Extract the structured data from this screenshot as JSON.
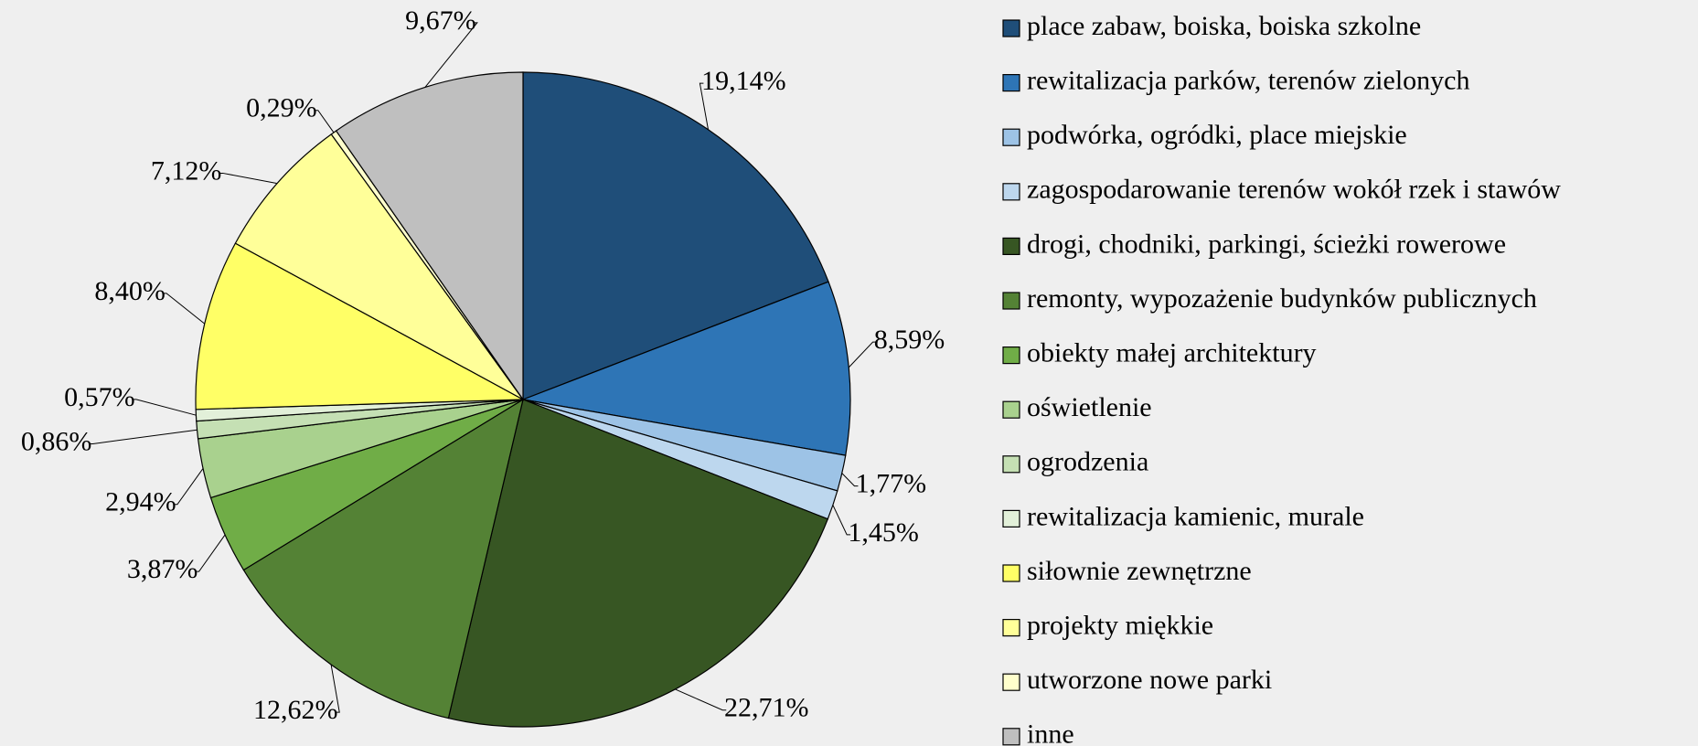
{
  "chart_data": {
    "type": "pie",
    "categories": [
      "place zabaw, boiska, boiska szkolne",
      "rewitalizacja parków, terenów zielonych",
      "podwórka, ogródki, place miejskie",
      "zagospodarowanie terenów wokół rzek i stawów",
      "drogi, chodniki, parkingi, ścieżki rowerowe",
      "remonty, wypozażenie budynków publicznych",
      "obiekty małej architektury",
      "oświetlenie",
      "ogrodzenia",
      "rewitalizacja kamienic, murale",
      "siłownie zewnętrzne",
      "projekty miękkie",
      "utworzone nowe parki",
      "inne"
    ],
    "values": [
      19.14,
      8.59,
      1.77,
      1.45,
      22.71,
      12.62,
      3.87,
      2.94,
      0.86,
      0.57,
      8.4,
      7.12,
      0.29,
      9.67
    ],
    "value_labels": [
      "19,14%",
      "8,59%",
      "1,77%",
      "1,45%",
      "22,71%",
      "12,62%",
      "3,87%",
      "2,94%",
      "0,86%",
      "0,57%",
      "8,40%",
      "7,12%",
      "0,29%",
      "9,67%"
    ],
    "colors": [
      "#1f4e79",
      "#2e75b6",
      "#9dc3e6",
      "#bdd7ee",
      "#375623",
      "#548235",
      "#70ad47",
      "#a9d18e",
      "#c5e0b4",
      "#e2f0d9",
      "#ffff66",
      "#ffff99",
      "#ffffcc",
      "#bfbfbf"
    ],
    "legend": "right"
  }
}
